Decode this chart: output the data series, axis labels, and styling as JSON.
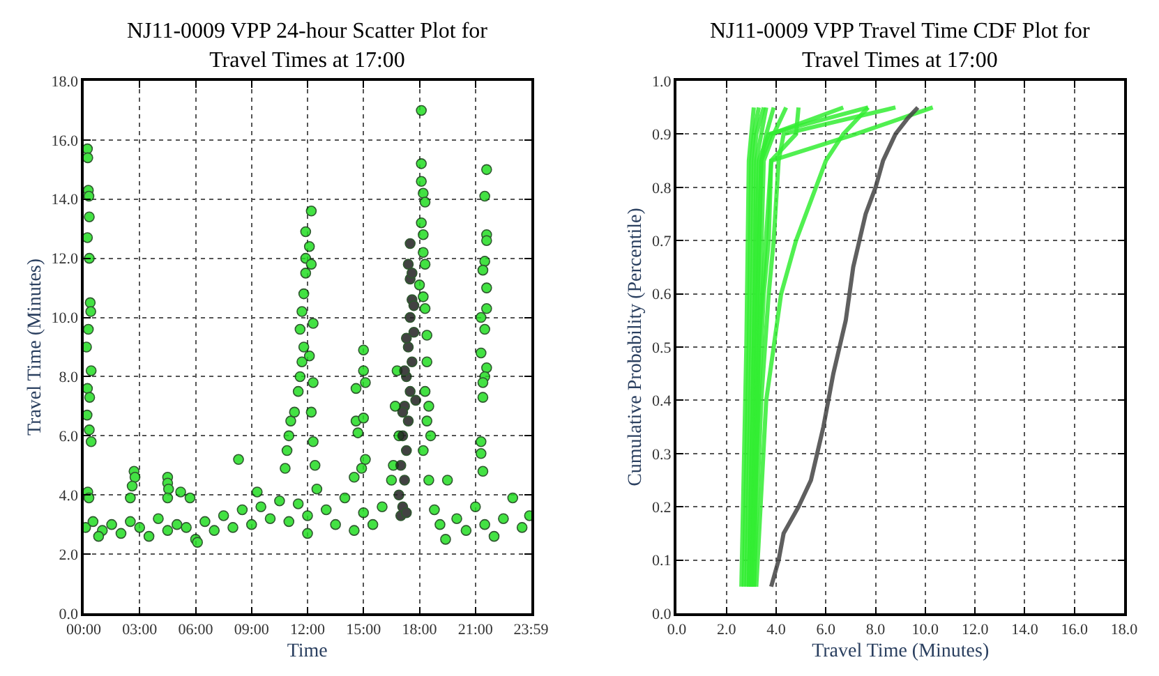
{
  "chart_data": [
    {
      "type": "scatter",
      "title": "NJ11-0009 VPP 24-hour Scatter Plot for\nTravel Times at 17:00",
      "xlabel": "Time",
      "ylabel": "Travel Time (Minutes)",
      "xlim": [
        0,
        23.983
      ],
      "xticks": [
        {
          "value": 0,
          "label": "00:00"
        },
        {
          "value": 3,
          "label": "03:00"
        },
        {
          "value": 6,
          "label": "06:00"
        },
        {
          "value": 9,
          "label": "09:00"
        },
        {
          "value": 12,
          "label": "12:00"
        },
        {
          "value": 15,
          "label": "15:00"
        },
        {
          "value": 18,
          "label": "18:00"
        },
        {
          "value": 21,
          "label": "21:00"
        },
        {
          "value": 23.983,
          "label": "23:59"
        }
      ],
      "ylim": [
        0,
        18
      ],
      "yticks": [
        {
          "value": 0,
          "label": "0.0"
        },
        {
          "value": 2,
          "label": "2.0"
        },
        {
          "value": 4,
          "label": "4.0"
        },
        {
          "value": 6,
          "label": "6.0"
        },
        {
          "value": 8,
          "label": "8.0"
        },
        {
          "value": 10,
          "label": "10.0"
        },
        {
          "value": 12,
          "label": "12.0"
        },
        {
          "value": 14,
          "label": "14.0"
        },
        {
          "value": 16,
          "label": "16.0"
        },
        {
          "value": 18,
          "label": "18.0"
        }
      ],
      "grid": true,
      "marker": "circle",
      "series": [
        {
          "color": "#22dd22",
          "x": [
            0.1,
            0.5,
            1,
            1.5,
            2,
            2.5,
            3,
            3.5,
            4,
            4.5,
            5,
            5.5,
            6,
            6.5,
            7,
            7.5,
            8,
            8.5,
            9,
            9.5,
            10,
            10.5,
            11,
            11.5,
            12,
            12.5,
            13,
            13.5,
            14,
            14.5,
            15,
            15.5,
            16,
            16.5,
            18.2,
            18.5,
            18.8,
            19.1,
            19.5,
            20,
            20.5,
            21,
            21.5,
            22,
            22.5,
            23,
            23.5,
            23.9,
            0.8,
            6.1,
            19.4,
            12,
            0.2,
            0.22,
            0.25,
            0.28,
            0.3,
            0.2,
            0.3,
            0.35,
            0.38,
            0.25,
            0.15,
            0.4,
            0.2,
            0.32,
            0.18,
            0.3,
            0.4,
            0.22,
            0.28,
            2.7,
            2.75,
            2.6,
            2.5,
            4.5,
            4.5,
            4.55,
            4.5,
            5.2,
            5.7,
            8.3,
            9.3,
            10.8,
            10.9,
            11.0,
            11.1,
            11.3,
            11.5,
            11.6,
            11.7,
            11.8,
            11.6,
            11.7,
            11.8,
            11.9,
            11.9,
            11.9,
            12.2,
            12.1,
            12.2,
            12.3,
            12.1,
            12.3,
            12.2,
            12.3,
            12.4,
            14.6,
            14.6,
            14.7,
            14.5,
            15.0,
            15.0,
            15.1,
            15.0,
            15.1,
            14.9,
            16.8,
            16.7,
            16.9,
            16.6,
            18.1,
            18.1,
            18.1,
            18.2,
            18.3,
            18.1,
            18.2,
            18.2,
            18.3,
            18.0,
            18.2,
            18.3,
            18.4,
            18.4,
            18.3,
            18.5,
            18.4,
            18.6,
            21.6,
            21.5,
            21.6,
            21.6,
            21.5,
            21.4,
            21.6,
            21.6,
            21.3,
            21.5,
            21.3,
            21.6,
            21.5,
            21.4,
            21.4,
            21.3,
            21.3,
            21.4
          ],
          "values": [
            2.9,
            3.1,
            2.8,
            3.0,
            2.7,
            3.1,
            2.9,
            2.6,
            3.2,
            2.8,
            3.0,
            2.9,
            2.5,
            3.1,
            2.8,
            3.3,
            2.9,
            3.5,
            3.0,
            3.6,
            3.2,
            3.8,
            3.1,
            3.7,
            3.3,
            4.2,
            3.5,
            3.0,
            3.9,
            2.8,
            3.4,
            3.0,
            3.6,
            4.5,
            5.5,
            4.5,
            3.5,
            3.0,
            4.5,
            3.2,
            2.8,
            3.6,
            3.0,
            2.6,
            3.2,
            3.9,
            2.9,
            3.3,
            2.6,
            2.4,
            2.5,
            2.7,
            15.7,
            15.4,
            14.3,
            14.1,
            13.4,
            12.7,
            12.0,
            10.5,
            10.2,
            9.6,
            9.0,
            8.2,
            7.6,
            7.3,
            6.7,
            6.2,
            5.8,
            4.1,
            3.9,
            4.8,
            4.6,
            4.3,
            3.9,
            4.6,
            4.4,
            4.2,
            3.9,
            4.1,
            3.9,
            5.2,
            4.1,
            4.9,
            5.5,
            6.0,
            6.5,
            6.8,
            7.5,
            8.0,
            8.5,
            9.0,
            9.6,
            10.2,
            10.8,
            11.5,
            12.0,
            12.9,
            13.6,
            12.4,
            11.8,
            9.8,
            8.7,
            7.8,
            6.8,
            5.8,
            5.0,
            7.6,
            6.5,
            6.1,
            4.6,
            8.9,
            8.2,
            7.8,
            6.6,
            5.2,
            4.9,
            8.2,
            7.0,
            6.0,
            5.0,
            17.0,
            15.2,
            14.6,
            14.2,
            13.9,
            13.2,
            12.8,
            12.2,
            11.8,
            11.1,
            10.7,
            10.3,
            9.4,
            8.5,
            7.5,
            7.0,
            6.5,
            6.0,
            15.0,
            14.1,
            12.8,
            12.6,
            11.9,
            11.6,
            11.0,
            10.3,
            10.0,
            9.6,
            8.8,
            8.3,
            8.0,
            7.8,
            7.3,
            5.8,
            5.4,
            4.8
          ]
        },
        {
          "color": "#222222",
          "x": [
            17.0,
            17.1,
            16.9,
            17.2,
            17.0,
            17.3,
            17.1,
            17.4,
            17.2,
            17.5,
            17.3,
            17.6,
            17.4,
            17.7,
            17.5,
            17.6,
            17.3,
            17.5,
            17.4,
            17.6,
            17.7,
            17.2,
            17.8,
            17.1,
            17.5,
            17.3
          ],
          "values": [
            3.3,
            3.6,
            4.0,
            4.5,
            5.0,
            5.5,
            6.0,
            6.5,
            7.0,
            7.5,
            8.0,
            8.5,
            9.0,
            9.5,
            10.0,
            10.6,
            9.3,
            11.3,
            11.8,
            11.5,
            10.4,
            8.2,
            7.2,
            6.8,
            12.5,
            3.4
          ]
        }
      ]
    },
    {
      "type": "line",
      "title": "NJ11-0009 VPP Travel Time CDF Plot for\nTravel Times at 17:00",
      "xlabel": "Travel Time (Minutes)",
      "ylabel": "Cumulative Probability (Percentile)",
      "xlim": [
        0,
        18
      ],
      "xticks": [
        {
          "value": 0,
          "label": "0.0"
        },
        {
          "value": 2,
          "label": "2.0"
        },
        {
          "value": 4,
          "label": "4.0"
        },
        {
          "value": 6,
          "label": "6.0"
        },
        {
          "value": 8,
          "label": "8.0"
        },
        {
          "value": 10,
          "label": "10.0"
        },
        {
          "value": 12,
          "label": "12.0"
        },
        {
          "value": 14,
          "label": "14.0"
        },
        {
          "value": 16,
          "label": "16.0"
        },
        {
          "value": 18,
          "label": "18.0"
        }
      ],
      "ylim": [
        0,
        1
      ],
      "yticks": [
        {
          "value": 0,
          "label": "0.0"
        },
        {
          "value": 0.1,
          "label": "0.1"
        },
        {
          "value": 0.2,
          "label": "0.2"
        },
        {
          "value": 0.3,
          "label": "0.3"
        },
        {
          "value": 0.4,
          "label": "0.4"
        },
        {
          "value": 0.5,
          "label": "0.5"
        },
        {
          "value": 0.6,
          "label": "0.6"
        },
        {
          "value": 0.7,
          "label": "0.7"
        },
        {
          "value": 0.8,
          "label": "0.8"
        },
        {
          "value": 0.9,
          "label": "0.9"
        },
        {
          "value": 1,
          "label": "1.0"
        }
      ],
      "grid": true,
      "marker": "none",
      "line_style": "solid",
      "series": [
        {
          "color": "#33ee33",
          "x": [
            2.6,
            2.8,
            2.9,
            3.0,
            3.1
          ],
          "values": [
            0.05,
            0.5,
            0.85,
            0.9,
            0.95
          ]
        },
        {
          "color": "#33ee33",
          "x": [
            2.7,
            2.9,
            3.0,
            3.1,
            3.3
          ],
          "values": [
            0.05,
            0.5,
            0.85,
            0.9,
            0.95
          ]
        },
        {
          "color": "#33ee33",
          "x": [
            2.8,
            3.0,
            3.1,
            3.2,
            3.5
          ],
          "values": [
            0.05,
            0.5,
            0.85,
            0.9,
            0.95
          ]
        },
        {
          "color": "#33ee33",
          "x": [
            2.9,
            3.1,
            3.2,
            3.4,
            3.6
          ],
          "values": [
            0.05,
            0.5,
            0.85,
            0.9,
            0.95
          ]
        },
        {
          "color": "#33ee33",
          "x": [
            3.0,
            3.2,
            3.4,
            3.6,
            3.9
          ],
          "values": [
            0.05,
            0.5,
            0.85,
            0.9,
            0.95
          ]
        },
        {
          "color": "#33ee33",
          "x": [
            3.1,
            3.3,
            3.5,
            3.9,
            4.4
          ],
          "values": [
            0.05,
            0.5,
            0.85,
            0.9,
            0.95
          ]
        },
        {
          "color": "#33ee33",
          "x": [
            3.0,
            3.2,
            3.4,
            3.8,
            6.7
          ],
          "values": [
            0.05,
            0.5,
            0.85,
            0.9,
            0.95
          ]
        },
        {
          "color": "#33ee33",
          "x": [
            2.9,
            3.1,
            3.3,
            3.7,
            7.7
          ],
          "values": [
            0.05,
            0.5,
            0.85,
            0.9,
            0.95
          ]
        },
        {
          "color": "#33ee33",
          "x": [
            3.0,
            3.3,
            3.8,
            4.8,
            4.9
          ],
          "values": [
            0.05,
            0.5,
            0.85,
            0.9,
            0.95
          ]
        },
        {
          "color": "#33ee33",
          "x": [
            3.2,
            3.6,
            4.2,
            4.8,
            6.0,
            6.7,
            7.7
          ],
          "values": [
            0.05,
            0.4,
            0.6,
            0.7,
            0.85,
            0.9,
            0.95
          ]
        },
        {
          "color": "#33ee33",
          "x": [
            3.1,
            3.4,
            3.7,
            3.9,
            4.1,
            4.3,
            8.8
          ],
          "values": [
            0.05,
            0.4,
            0.6,
            0.7,
            0.85,
            0.9,
            0.95
          ]
        },
        {
          "color": "#33ee33",
          "x": [
            3.0,
            3.3,
            3.5,
            3.7,
            3.8,
            7.2,
            10.3
          ],
          "values": [
            0.05,
            0.4,
            0.6,
            0.7,
            0.85,
            0.9,
            0.95
          ]
        },
        {
          "color": "#444444",
          "x": [
            3.8,
            4.1,
            4.3,
            4.9,
            5.4,
            5.9,
            6.3,
            6.8,
            7.1,
            7.6,
            8.0,
            8.3,
            8.8,
            9.3,
            9.7
          ],
          "values": [
            0.05,
            0.1,
            0.15,
            0.2,
            0.25,
            0.35,
            0.45,
            0.55,
            0.65,
            0.75,
            0.8,
            0.85,
            0.9,
            0.93,
            0.95
          ]
        }
      ]
    }
  ]
}
